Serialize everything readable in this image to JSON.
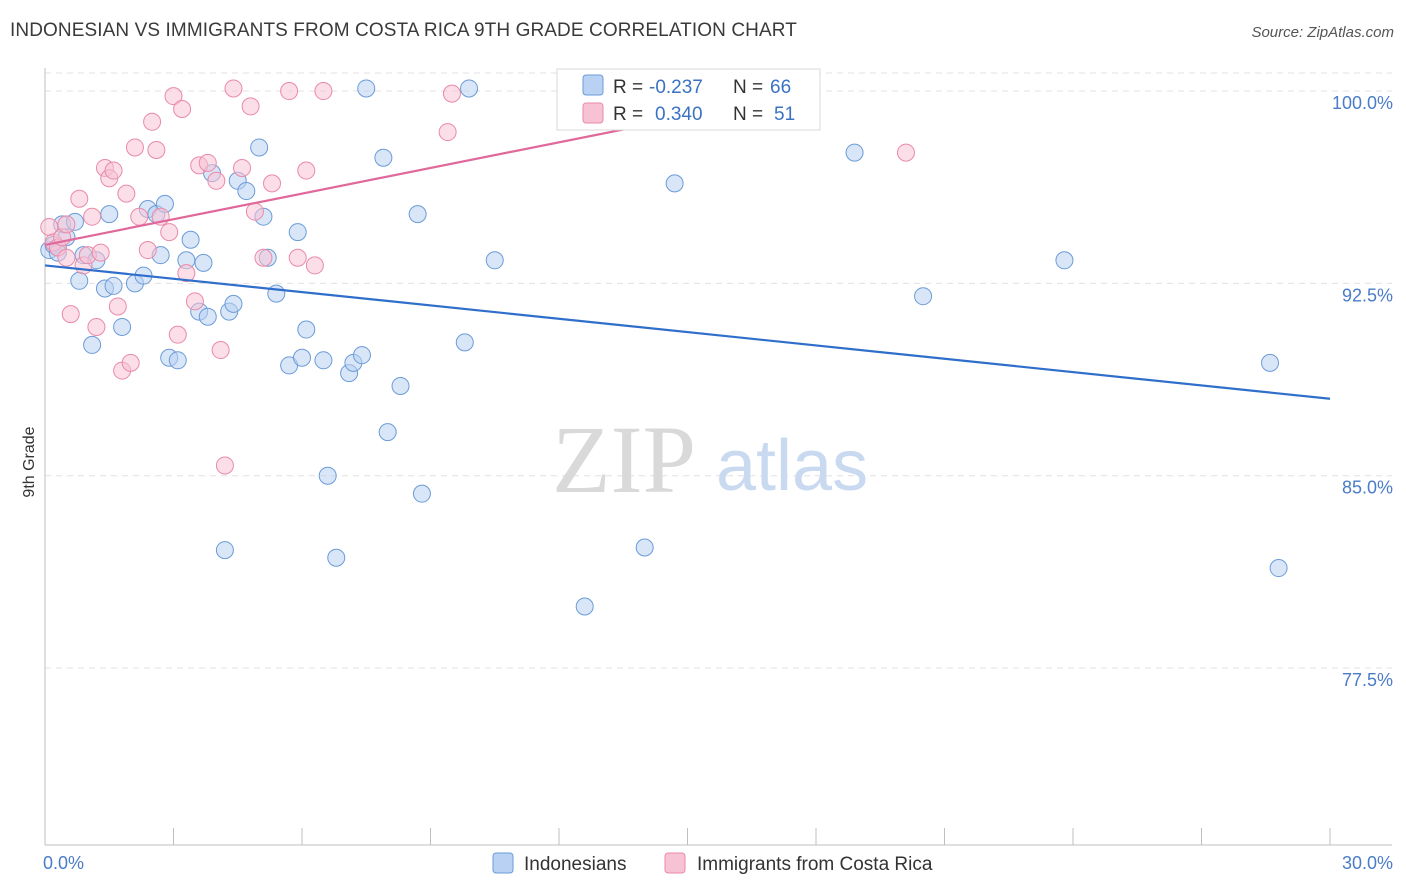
{
  "title": "INDONESIAN VS IMMIGRANTS FROM COSTA RICA 9TH GRADE CORRELATION CHART",
  "source": "Source: ZipAtlas.com",
  "watermark": {
    "zip": "ZIP",
    "atlas": "atlas"
  },
  "colors": {
    "blue": "#6b9bd8",
    "blue_fill": "#b9d1f2",
    "blue_line": "#2f6fcb",
    "pink": "#e98aaa",
    "pink_fill": "#f7c3d4",
    "pink_line": "#e0689a",
    "grid": "#e0e0e0",
    "tick_text": "#4a7cc9"
  },
  "chart_data": {
    "type": "scatter",
    "title": "INDONESIAN VS IMMIGRANTS FROM COSTA RICA 9TH GRADE CORRELATION CHART",
    "xlabel": "",
    "ylabel": "9th Grade",
    "xlim": [
      0,
      30
    ],
    "ylim": [
      70.6,
      101.6
    ],
    "x_tick_labels": [
      "0.0%",
      "30.0%"
    ],
    "y_ticks": [
      77.5,
      85.0,
      92.5,
      100.0
    ],
    "y_tick_labels": [
      "77.5%",
      "85.0%",
      "92.5%",
      "100.0%"
    ],
    "grid": true,
    "legend_position": "bottom-center",
    "stats_box": [
      {
        "r_label": "R =",
        "r": "-0.237",
        "n_label": "N =",
        "n": "66"
      },
      {
        "r_label": "R =",
        "r": "0.340",
        "n_label": "N =",
        "n": "51"
      }
    ],
    "series": [
      {
        "name": "Indonesians",
        "color": "#6b9bd8",
        "trend": {
          "x": [
            0,
            30
          ],
          "y": [
            93.2,
            88.0
          ]
        },
        "points": [
          [
            0.1,
            93.8
          ],
          [
            0.2,
            94.0
          ],
          [
            0.3,
            93.9
          ],
          [
            0.4,
            94.8
          ],
          [
            0.5,
            94.3
          ],
          [
            0.7,
            94.9
          ],
          [
            0.8,
            92.6
          ],
          [
            0.9,
            93.6
          ],
          [
            1.1,
            90.1
          ],
          [
            1.4,
            92.3
          ],
          [
            1.5,
            95.2
          ],
          [
            1.6,
            92.4
          ],
          [
            1.8,
            90.8
          ],
          [
            2.1,
            92.5
          ],
          [
            2.3,
            92.8
          ],
          [
            2.4,
            95.4
          ],
          [
            2.6,
            95.2
          ],
          [
            2.7,
            93.6
          ],
          [
            2.8,
            95.6
          ],
          [
            2.9,
            89.6
          ],
          [
            3.1,
            89.5
          ],
          [
            3.3,
            93.4
          ],
          [
            3.4,
            94.2
          ],
          [
            3.6,
            91.4
          ],
          [
            3.7,
            93.3
          ],
          [
            3.8,
            91.2
          ],
          [
            3.9,
            96.8
          ],
          [
            4.2,
            82.1
          ],
          [
            4.3,
            91.4
          ],
          [
            4.4,
            91.7
          ],
          [
            4.5,
            96.5
          ],
          [
            4.7,
            96.1
          ],
          [
            5.0,
            97.8
          ],
          [
            5.1,
            95.1
          ],
          [
            5.2,
            93.5
          ],
          [
            5.4,
            92.1
          ],
          [
            5.7,
            89.3
          ],
          [
            5.9,
            94.5
          ],
          [
            6.0,
            89.6
          ],
          [
            6.1,
            90.7
          ],
          [
            6.5,
            89.5
          ],
          [
            6.6,
            85.0
          ],
          [
            6.8,
            81.8
          ],
          [
            7.1,
            89.0
          ],
          [
            7.2,
            89.4
          ],
          [
            7.4,
            89.7
          ],
          [
            7.5,
            100.1
          ],
          [
            7.9,
            97.4
          ],
          [
            8.0,
            86.7
          ],
          [
            8.3,
            88.5
          ],
          [
            8.7,
            95.2
          ],
          [
            8.8,
            84.3
          ],
          [
            9.8,
            90.2
          ],
          [
            9.9,
            100.1
          ],
          [
            10.5,
            93.4
          ],
          [
            12.6,
            79.9
          ],
          [
            12.7,
            100.0
          ],
          [
            14.0,
            82.2
          ],
          [
            14.7,
            96.4
          ],
          [
            18.9,
            97.6
          ],
          [
            20.5,
            92.0
          ],
          [
            23.8,
            93.4
          ],
          [
            28.6,
            89.4
          ],
          [
            28.8,
            81.4
          ],
          [
            0.3,
            93.7
          ],
          [
            1.2,
            93.4
          ]
        ]
      },
      {
        "name": "Immigrants from Costa Rica",
        "color": "#e98aaa",
        "trend": {
          "x": [
            0,
            18
          ],
          "y": [
            94.0,
            100.0
          ]
        },
        "points": [
          [
            0.1,
            94.7
          ],
          [
            0.2,
            94.1
          ],
          [
            0.3,
            93.9
          ],
          [
            0.4,
            94.3
          ],
          [
            0.5,
            93.5
          ],
          [
            0.6,
            91.3
          ],
          [
            0.8,
            95.8
          ],
          [
            0.9,
            93.2
          ],
          [
            1.0,
            93.6
          ],
          [
            1.1,
            95.1
          ],
          [
            1.2,
            90.8
          ],
          [
            1.3,
            93.7
          ],
          [
            1.4,
            97.0
          ],
          [
            1.5,
            96.6
          ],
          [
            1.6,
            96.9
          ],
          [
            1.7,
            91.6
          ],
          [
            1.8,
            89.1
          ],
          [
            1.9,
            96.0
          ],
          [
            2.0,
            89.4
          ],
          [
            2.1,
            97.8
          ],
          [
            2.2,
            95.1
          ],
          [
            2.4,
            93.8
          ],
          [
            2.5,
            98.8
          ],
          [
            2.6,
            97.7
          ],
          [
            2.7,
            95.1
          ],
          [
            2.9,
            94.5
          ],
          [
            3.0,
            99.8
          ],
          [
            3.1,
            90.5
          ],
          [
            3.2,
            99.3
          ],
          [
            3.3,
            92.9
          ],
          [
            3.5,
            91.8
          ],
          [
            3.6,
            97.1
          ],
          [
            3.8,
            97.2
          ],
          [
            4.0,
            96.5
          ],
          [
            4.1,
            89.9
          ],
          [
            4.2,
            85.4
          ],
          [
            4.4,
            100.1
          ],
          [
            4.6,
            97.0
          ],
          [
            4.8,
            99.4
          ],
          [
            4.9,
            95.3
          ],
          [
            5.1,
            93.5
          ],
          [
            5.3,
            96.4
          ],
          [
            5.7,
            100.0
          ],
          [
            5.9,
            93.5
          ],
          [
            6.1,
            96.9
          ],
          [
            6.3,
            93.2
          ],
          [
            6.5,
            100.0
          ],
          [
            9.4,
            98.4
          ],
          [
            9.5,
            99.9
          ],
          [
            20.1,
            97.6
          ],
          [
            0.5,
            94.8
          ]
        ]
      }
    ]
  }
}
